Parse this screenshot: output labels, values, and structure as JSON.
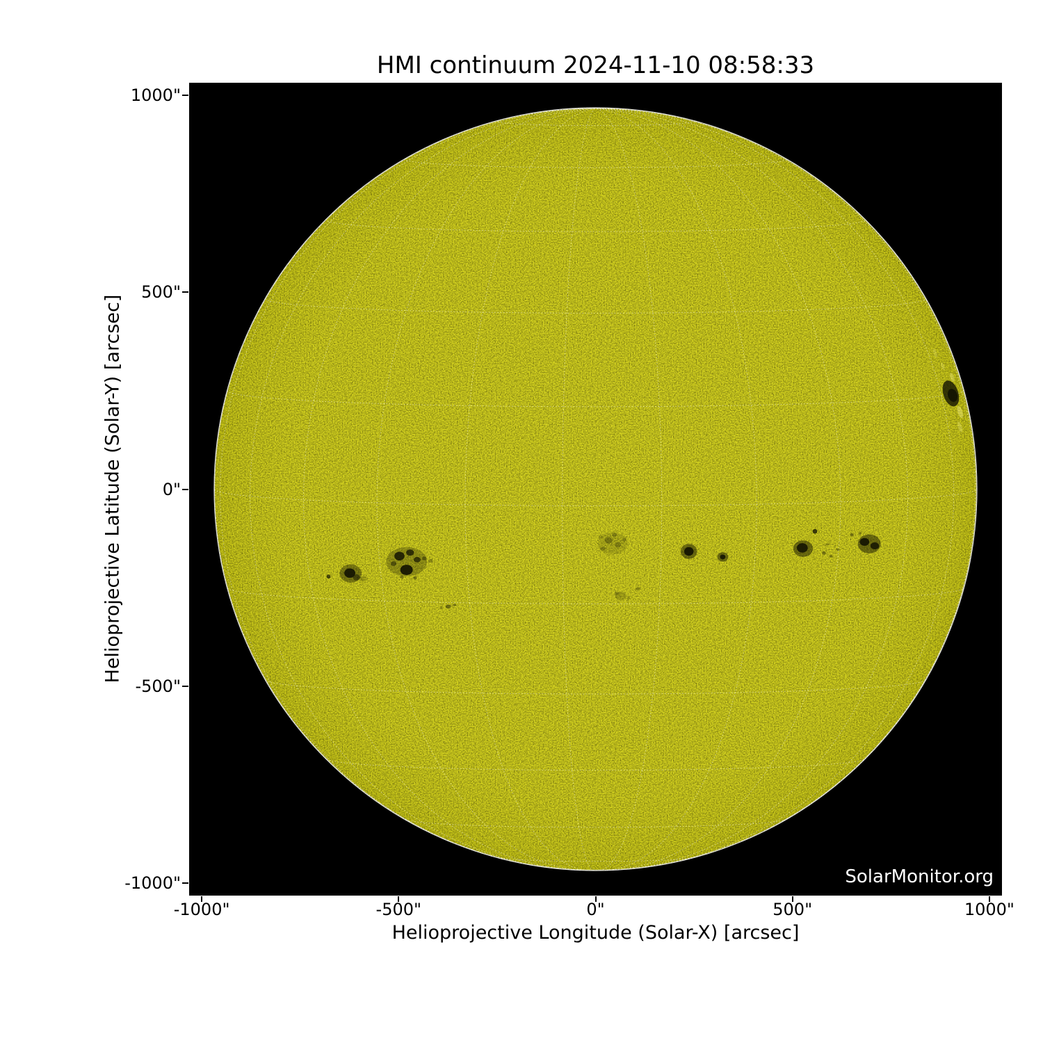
{
  "title": "HMI continuum 2024-11-10 08:58:33",
  "watermark": "SolarMonitor.org",
  "chart_data": {
    "type": "heatmap",
    "subtype": "solar_continuum_disk_image",
    "instrument": "HMI continuum",
    "timestamp": "2024-11-10 08:58:33",
    "title": "HMI continuum 2024-11-10 08:58:33",
    "xlabel": "Helioprojective Longitude (Solar-X) [arcsec]",
    "ylabel": "Helioprojective Latitude (Solar-Y) [arcsec]",
    "xlim": [
      -1032,
      1032
    ],
    "ylim": [
      -1032,
      1032
    ],
    "x_ticks": [
      {
        "label": "-1000\"",
        "value": -1000
      },
      {
        "label": "-500\"",
        "value": -500
      },
      {
        "label": "0\"",
        "value": 0
      },
      {
        "label": "500\"",
        "value": 500
      },
      {
        "label": "1000\"",
        "value": 1000
      }
    ],
    "y_ticks": [
      {
        "label": "1000\"",
        "value": 1000
      },
      {
        "label": "500\"",
        "value": 500
      },
      {
        "label": "0\"",
        "value": 0
      },
      {
        "label": "-500\"",
        "value": -500
      },
      {
        "label": "-1000\"",
        "value": -1000
      }
    ],
    "colors": {
      "plot_background": "#000000",
      "disk": "#d6d41e",
      "disk_edge": "#c9c715",
      "rim": "#fdfdf2",
      "grid": "#ffffff",
      "spot_dark": "#141402",
      "spot_light": "#f3f080",
      "text": "#000000",
      "watermark_text": "#ffffff"
    },
    "disk": {
      "radius_arcsec": 968
    },
    "grid": {
      "spacing_deg": 15,
      "b0_deg": 2.5,
      "lon_offset_deg": -5,
      "opacity": 0.5,
      "dash": "1 3.2"
    },
    "sunspots": [
      {
        "name": "left trailing spot",
        "x": -622,
        "y": -214,
        "blobs": [
          [
            0,
            0,
            28,
            23,
            0.42
          ],
          [
            -2,
            1,
            14,
            12,
            0.92
          ],
          [
            15,
            -10,
            9,
            8,
            0.5
          ],
          [
            32,
            -14,
            10,
            7,
            0.22
          ]
        ]
      },
      {
        "name": "isolated pore far left",
        "x": -678,
        "y": -222,
        "blobs": [
          [
            0,
            0,
            5,
            5,
            0.7
          ]
        ]
      },
      {
        "name": "left leading group",
        "x": -480,
        "y": -184,
        "blobs": [
          [
            0,
            0,
            52,
            37,
            0.28
          ],
          [
            -18,
            14,
            13,
            11,
            0.85
          ],
          [
            9,
            23,
            10,
            8,
            0.78
          ],
          [
            27,
            5,
            9,
            7,
            0.7
          ],
          [
            0,
            -21,
            16,
            13,
            0.93
          ],
          [
            -33,
            -5,
            7,
            6,
            0.5
          ],
          [
            45,
            8,
            6,
            5,
            0.4
          ],
          [
            61,
            2,
            5,
            4,
            0.35
          ],
          [
            22,
            -41,
            5,
            4,
            0.4
          ],
          [
            -12,
            -39,
            5,
            4,
            0.35
          ]
        ]
      },
      {
        "name": "speck trail southwest",
        "x": -374,
        "y": -298,
        "blobs": [
          [
            0,
            0,
            7,
            5,
            0.45
          ],
          [
            16,
            4,
            4,
            3,
            0.45
          ],
          [
            -18,
            -3,
            3,
            3,
            0.35
          ]
        ]
      },
      {
        "name": "faint speck cluster near center",
        "x": 43,
        "y": -138,
        "blobs": [
          [
            0,
            0,
            38,
            28,
            0.14
          ],
          [
            -10,
            8,
            10,
            8,
            0.32
          ],
          [
            14,
            -3,
            8,
            7,
            0.28
          ],
          [
            -24,
            -13,
            7,
            5,
            0.28
          ],
          [
            30,
            10,
            5,
            5,
            0.25
          ],
          [
            5,
            22,
            6,
            5,
            0.28
          ],
          [
            -30,
            18,
            5,
            4,
            0.22
          ]
        ]
      },
      {
        "name": "faint specks south of center",
        "x": 64,
        "y": -271,
        "blobs": [
          [
            0,
            0,
            15,
            10,
            0.2
          ],
          [
            44,
            18,
            6,
            4,
            0.32
          ],
          [
            -10,
            6,
            6,
            4,
            0.25
          ],
          [
            20,
            -6,
            4,
            3,
            0.28
          ]
        ]
      },
      {
        "name": "round spot",
        "x": 237,
        "y": -158,
        "blobs": [
          [
            0,
            0,
            21,
            19,
            0.5
          ],
          [
            0,
            0,
            12,
            11,
            0.95
          ]
        ]
      },
      {
        "name": "small round spot",
        "x": 323,
        "y": -172,
        "blobs": [
          [
            0,
            0,
            14,
            12,
            0.5
          ],
          [
            0,
            0,
            7,
            6,
            0.9
          ]
        ]
      },
      {
        "name": "pore",
        "x": 557,
        "y": -107,
        "blobs": [
          [
            0,
            0,
            6,
            6,
            0.78
          ]
        ]
      },
      {
        "name": "spot with trailing specks",
        "x": 527,
        "y": -151,
        "blobs": [
          [
            0,
            0,
            25,
            21,
            0.5
          ],
          [
            -2,
            2,
            14,
            12,
            0.9
          ],
          [
            53,
            -11,
            5,
            4,
            0.45
          ],
          [
            71,
            -19,
            4,
            3,
            0.4
          ],
          [
            88,
            -2,
            5,
            3,
            0.38
          ],
          [
            62,
            11,
            4,
            3,
            0.35
          ]
        ]
      },
      {
        "name": "large east spot",
        "x": 695,
        "y": -139,
        "blobs": [
          [
            0,
            0,
            29,
            24,
            0.5
          ],
          [
            -12,
            5,
            12,
            10,
            0.92
          ],
          [
            14,
            -5,
            11,
            9,
            0.85
          ],
          [
            -44,
            23,
            5,
            4,
            0.4
          ],
          [
            -23,
            27,
            4,
            3,
            0.35
          ]
        ]
      },
      {
        "name": "limb spot with faculae",
        "x": 902,
        "y": 243,
        "rot": -18,
        "blobs": [
          [
            0,
            0,
            19,
            34,
            0.8
          ],
          [
            3,
            -6,
            12,
            17,
            0.95
          ],
          [
            8,
            -52,
            6,
            16,
            0.45,
            1
          ],
          [
            -4,
            -88,
            5,
            14,
            0.32,
            1
          ],
          [
            16,
            38,
            5,
            12,
            0.38,
            1
          ],
          [
            2,
            72,
            4,
            10,
            0.28,
            1
          ],
          [
            -6,
            110,
            4,
            12,
            0.25,
            1
          ]
        ]
      }
    ]
  }
}
